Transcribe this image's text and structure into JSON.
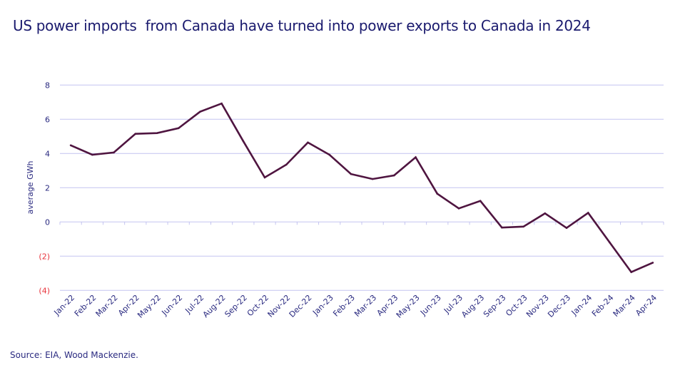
{
  "title": "US power imports  from Canada have turned into power exports to Canada in 2024",
  "source": "Source: EIA, Wood Mackenzie.",
  "colors": {
    "line": "#4f1540",
    "grid": "#c4c4f0",
    "text": "#2a2a80",
    "negative_tick": "#e8343c"
  },
  "chart_data": {
    "type": "line",
    "title": "US power imports  from Canada have turned into power exports to Canada in 2024",
    "xlabel": "",
    "ylabel": "average GWh",
    "ylim": [
      -4,
      8
    ],
    "yticks": [
      8,
      6,
      4,
      2,
      0,
      -2,
      -4
    ],
    "ytick_labels": [
      "8",
      "6",
      "4",
      "2",
      "0",
      "(2)",
      "(4)"
    ],
    "grid": true,
    "categories": [
      "Jan-22",
      "Feb-22",
      "Mar-22",
      "Apr-22",
      "May-22",
      "Jun-22",
      "Jul-22",
      "Aug-22",
      "Sep-22",
      "Oct-22",
      "Nov-22",
      "Dec-22",
      "Jan-23",
      "Feb-23",
      "Mar-23",
      "Apr-23",
      "May-23",
      "Jun-23",
      "Jul-23",
      "Aug-23",
      "Sep-23",
      "Oct-23",
      "Nov-23",
      "Dec-23",
      "Jan-24",
      "Feb-24",
      "Mar-24",
      "Apr-24"
    ],
    "series": [
      {
        "values": [
          4.48,
          3.93,
          4.06,
          5.15,
          5.19,
          5.48,
          6.44,
          6.92,
          4.73,
          2.6,
          3.35,
          4.64,
          3.93,
          2.8,
          2.51,
          2.72,
          3.78,
          1.65,
          0.79,
          1.23,
          -0.33,
          -0.27,
          0.5,
          -0.35,
          0.53,
          -1.2,
          -2.93,
          -2.38
        ]
      }
    ]
  }
}
